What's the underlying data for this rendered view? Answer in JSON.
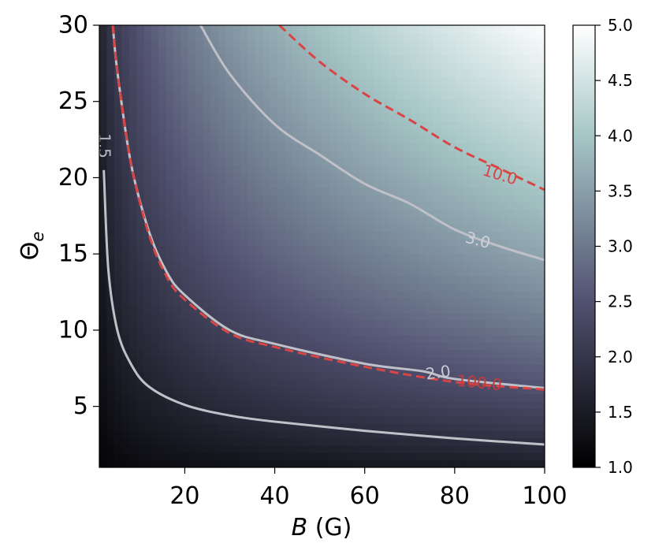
{
  "chart_data": {
    "type": "heatmap",
    "title": "",
    "xlabel_var": "B",
    "xlabel_unit": " (G)",
    "ylabel_base": "Θ",
    "ylabel_sub": "e",
    "xlim": [
      1,
      100
    ],
    "ylim": [
      1,
      30
    ],
    "xticks": [
      20,
      40,
      60,
      80,
      100
    ],
    "xtick_labels": [
      "20",
      "40",
      "60",
      "80",
      "100"
    ],
    "yticks": [
      5,
      10,
      15,
      20,
      25,
      30
    ],
    "ytick_labels": [
      "5",
      "10",
      "15",
      "20",
      "25",
      "30"
    ],
    "colorbar": {
      "min": 1.0,
      "max": 5.0,
      "ticks": [
        1.0,
        1.5,
        2.0,
        2.5,
        3.0,
        3.5,
        4.0,
        4.5,
        5.0
      ],
      "tick_labels": [
        "1.0",
        "1.5",
        "2.0",
        "2.5",
        "3.0",
        "3.5",
        "4.0",
        "4.5",
        "5.0"
      ],
      "colormap": "bone"
    },
    "solid_contours": [
      {
        "level": 1.5,
        "label": "1.5",
        "color": "#c0c0c8",
        "points": [
          [
            2,
            20.5
          ],
          [
            3,
            14
          ],
          [
            5,
            10
          ],
          [
            8,
            7.8
          ],
          [
            12,
            6.3
          ],
          [
            20,
            5.1
          ],
          [
            30,
            4.4
          ],
          [
            40,
            4.0
          ],
          [
            60,
            3.4
          ],
          [
            80,
            2.9
          ],
          [
            100,
            2.5
          ]
        ]
      },
      {
        "level": 2.0,
        "label": "2.0",
        "color": "#c0c0c8",
        "points": [
          [
            4,
            30
          ],
          [
            5,
            27
          ],
          [
            8,
            21
          ],
          [
            12,
            16.5
          ],
          [
            16,
            13.8
          ],
          [
            20,
            12.3
          ],
          [
            30,
            10.0
          ],
          [
            40,
            9.1
          ],
          [
            60,
            7.8
          ],
          [
            73,
            7.3
          ],
          [
            80,
            6.8
          ],
          [
            100,
            6.2
          ]
        ]
      },
      {
        "level": 3.0,
        "label": "3.0",
        "color": "#c0c0c8",
        "points": [
          [
            23.5,
            30
          ],
          [
            30,
            26.8
          ],
          [
            40,
            23.5
          ],
          [
            50,
            21.5
          ],
          [
            60,
            19.6
          ],
          [
            70,
            18.3
          ],
          [
            80,
            16.6
          ],
          [
            90,
            15.5
          ],
          [
            100,
            14.6
          ]
        ]
      }
    ],
    "dashed_contours": [
      {
        "level": 10.0,
        "label": "10.0",
        "color": "#d94545",
        "points": [
          [
            41,
            30
          ],
          [
            50,
            27.6
          ],
          [
            60,
            25.5
          ],
          [
            70,
            23.8
          ],
          [
            80,
            22.0
          ],
          [
            90,
            20.6
          ],
          [
            100,
            19.2
          ]
        ]
      },
      {
        "level": 100.0,
        "label": "100.0",
        "color": "#d94545",
        "points": [
          [
            4,
            30
          ],
          [
            5,
            27
          ],
          [
            8,
            21
          ],
          [
            12,
            16.3
          ],
          [
            16,
            13.5
          ],
          [
            20,
            12.0
          ],
          [
            30,
            9.8
          ],
          [
            40,
            8.9
          ],
          [
            60,
            7.6
          ],
          [
            80,
            6.6
          ],
          [
            100,
            6.1
          ]
        ]
      }
    ]
  }
}
